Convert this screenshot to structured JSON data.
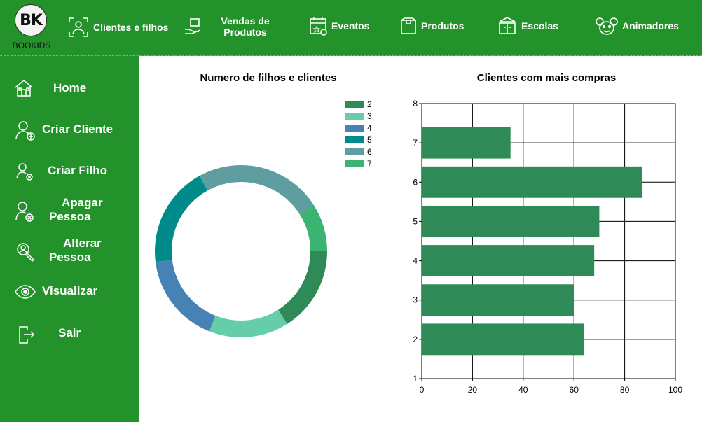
{
  "logo": {
    "mark": "BK",
    "name": "BOOKIDS"
  },
  "topnav": [
    {
      "label": "Clientes e filhos"
    },
    {
      "label": "Vendas de Produtos"
    },
    {
      "label": "Eventos"
    },
    {
      "label": "Produtos"
    },
    {
      "label": "Escolas"
    },
    {
      "label": "Animadores"
    }
  ],
  "sidebar": [
    {
      "label": "Home"
    },
    {
      "label": "Criar Cliente"
    },
    {
      "label": "Criar Filho"
    },
    {
      "label": "Apagar Pessoa"
    },
    {
      "label": "Alterar Pessoa"
    },
    {
      "label": "Visualizar"
    },
    {
      "label": "Sair"
    }
  ],
  "colors": {
    "green": "#24922a",
    "series": [
      "#2e8b57",
      "#66cdaa",
      "#4682b4",
      "#008b8b",
      "#5f9ea0",
      "#3cb371"
    ]
  },
  "chart_data": [
    {
      "type": "pie",
      "title": "Numero de filhos e clientes",
      "categories": [
        "2",
        "3",
        "4",
        "5",
        "6",
        "7"
      ],
      "values": [
        16,
        15,
        17,
        19,
        24,
        9
      ]
    },
    {
      "type": "bar",
      "orientation": "horizontal",
      "title": "Clientes com mais compras",
      "categories": [
        "2",
        "3",
        "4",
        "5",
        "6",
        "7"
      ],
      "values": [
        64,
        60,
        68,
        70,
        87,
        35
      ],
      "xlim": [
        0,
        100
      ],
      "xticks": [
        "0",
        "20",
        "40",
        "60",
        "80",
        "100"
      ],
      "ylim": [
        1,
        8
      ],
      "yticks": [
        "1",
        "2",
        "3",
        "4",
        "5",
        "6",
        "7",
        "8"
      ],
      "grid": true
    }
  ]
}
